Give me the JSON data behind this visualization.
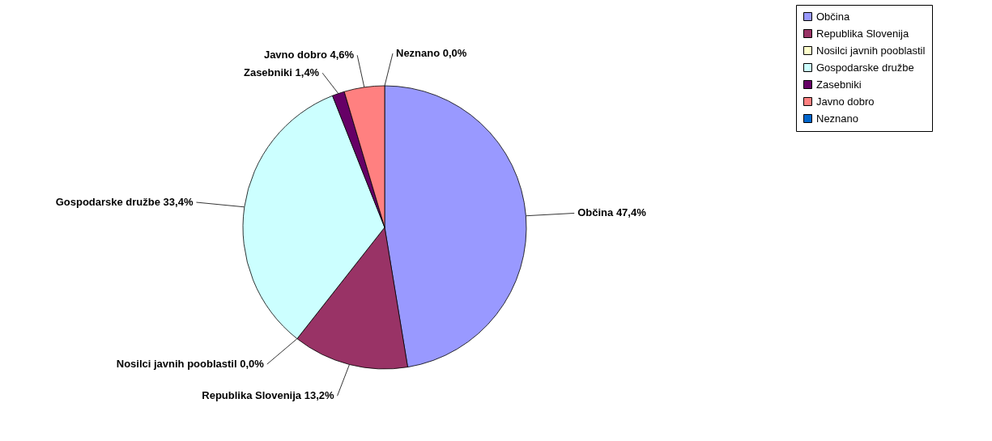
{
  "chart_data": {
    "type": "pie",
    "categories": [
      "Občina",
      "Republika Slovenija",
      "Nosilci javnih pooblastil",
      "Gospodarske družbe",
      "Zasebniki",
      "Javno dobro",
      "Neznano"
    ],
    "values": [
      47.4,
      13.2,
      0.0,
      33.4,
      1.4,
      4.6,
      0.0
    ],
    "colors": [
      "#9999ff",
      "#993366",
      "#ffffcc",
      "#ccffff",
      "#660066",
      "#ff8080",
      "#0066cc"
    ],
    "value_labels": [
      "Občina 47,4%",
      "Republika Slovenija 13,2%",
      "Nosilci javnih pooblastil 0,0%",
      "Gospodarske družbe 33,4%",
      "Zasebniki 1,4%",
      "Javno dobro 4,6%",
      "Neznano 0,0%"
    ],
    "legend": "right"
  }
}
